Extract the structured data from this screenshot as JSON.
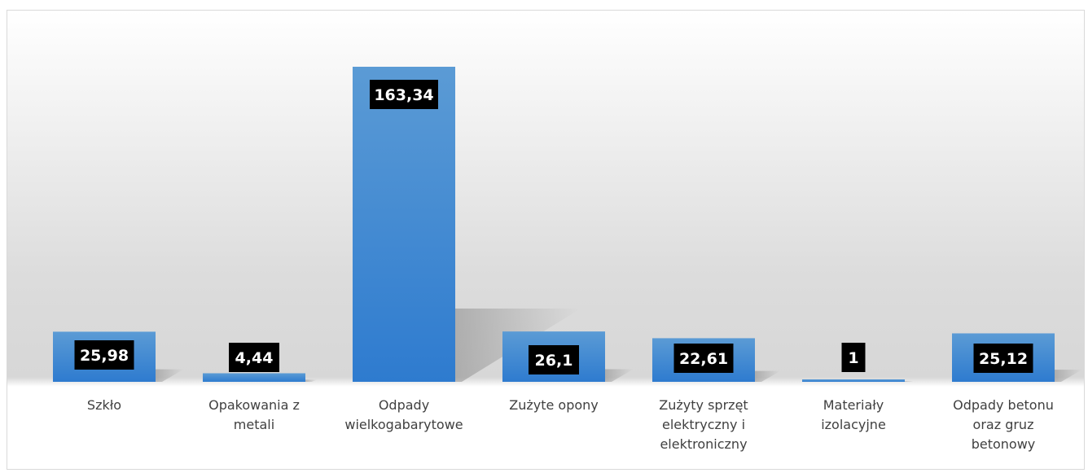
{
  "chart_data": {
    "type": "bar",
    "title": "",
    "xlabel": "",
    "ylabel": "",
    "categories": [
      "Szkło",
      "Opakowania z metali",
      "Odpady wielkogabarytowe",
      "Zużyte opony",
      "Zużyty sprzęt elektryczny i elektroniczny",
      "Materiały izolacyjne",
      "Odpady betonu oraz gruz betonowy"
    ],
    "values": [
      25.98,
      4.44,
      163.34,
      26.1,
      22.61,
      1,
      25.12
    ],
    "value_labels": [
      "25,98",
      "4,44",
      "163,34",
      "26,1",
      "22,61",
      "1",
      "25,12"
    ],
    "ylim": [
      0,
      163.34
    ],
    "grid": false,
    "legend": "none",
    "colors": {
      "bar_top": "#5b9bd5",
      "bar_bottom": "#2e7bcf",
      "label_bg": "#000000",
      "label_text": "#ffffff",
      "axis_text": "#404040"
    }
  }
}
